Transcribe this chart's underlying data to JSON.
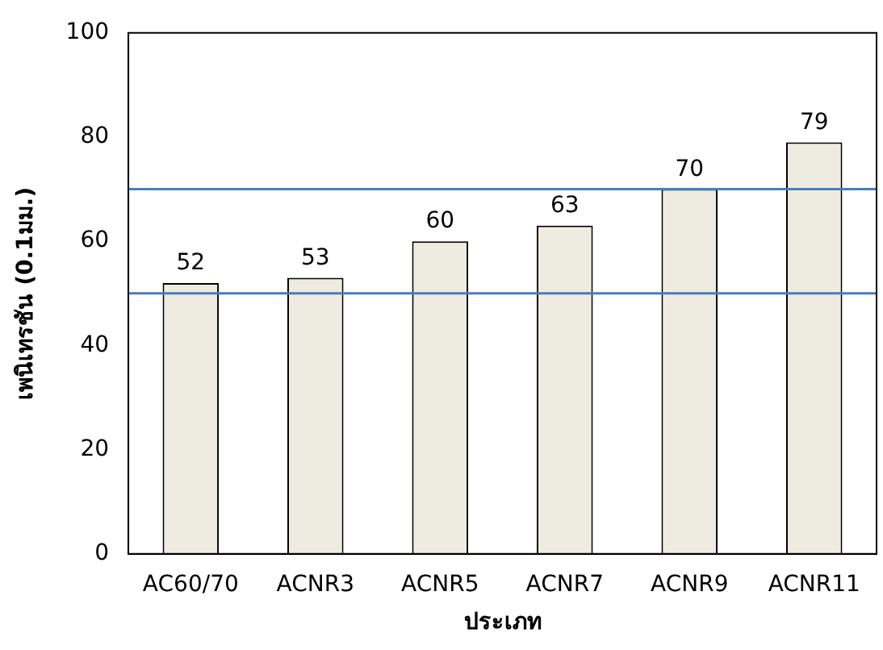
{
  "chart_data": {
    "type": "bar",
    "xlabel": "ประเภท",
    "ylabel": "เพนิเทรชัน (0.1มม.)",
    "categories": [
      "AC60/70",
      "ACNR3",
      "ACNR5",
      "ACNR7",
      "ACNR9",
      "ACNR11"
    ],
    "values": [
      52,
      53,
      60,
      63,
      70,
      79
    ],
    "color": "#eeece1",
    "ylim": [
      0,
      100
    ],
    "yticks": [
      0,
      20,
      40,
      60,
      80,
      100
    ],
    "grid": false,
    "data_labels": true,
    "ref_lines": [
      {
        "axis": "y",
        "value": 50,
        "color": "#4a7ebb"
      },
      {
        "axis": "y",
        "value": 70,
        "color": "#4a7ebb"
      }
    ]
  }
}
